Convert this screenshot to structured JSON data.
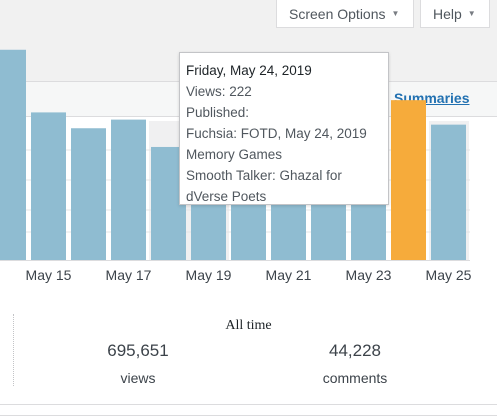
{
  "screen_meta": {
    "screen_options_label": "Screen Options",
    "help_label": "Help",
    "arrow_icon": "triangle-down-icon"
  },
  "summaries_link": "Summaries",
  "colors": {
    "bar": "#8fbcd1",
    "bar_selected": "#f6ab3b",
    "weekend_band": "#f0f0f1",
    "grid": "#e5e5e5",
    "link": "#2271b1"
  },
  "chart_data": {
    "type": "bar",
    "categories": [
      "May 14",
      "May 15",
      "May 16",
      "May 17",
      "May 18",
      "May 19",
      "May 20",
      "May 21",
      "May 22",
      "May 23",
      "May 24",
      "May 25"
    ],
    "x_tick_labels": [
      "May 15",
      "May 17",
      "May 19",
      "May 21",
      "May 23",
      "May 25"
    ],
    "values": [
      292,
      205,
      183,
      195,
      157,
      172,
      175,
      175,
      136,
      172,
      222,
      188
    ],
    "selected_index": 10,
    "weekend_categories": [
      "May 18",
      "May 19",
      "May 25"
    ],
    "grid": true,
    "legend": "none"
  },
  "tooltip": {
    "date": "Friday, May 24, 2019",
    "views": "Views: 222",
    "published_label": "Published:",
    "posts": [
      "Fuchsia: FOTD, May 24, 2019",
      "Memory Games",
      "Smooth Talker: Ghazal for",
      "dVerse Poets"
    ]
  },
  "all_time": {
    "title": "All time",
    "views_value": "695,651",
    "views_label": "views",
    "comments_value": "44,228",
    "comments_label": "comments"
  }
}
